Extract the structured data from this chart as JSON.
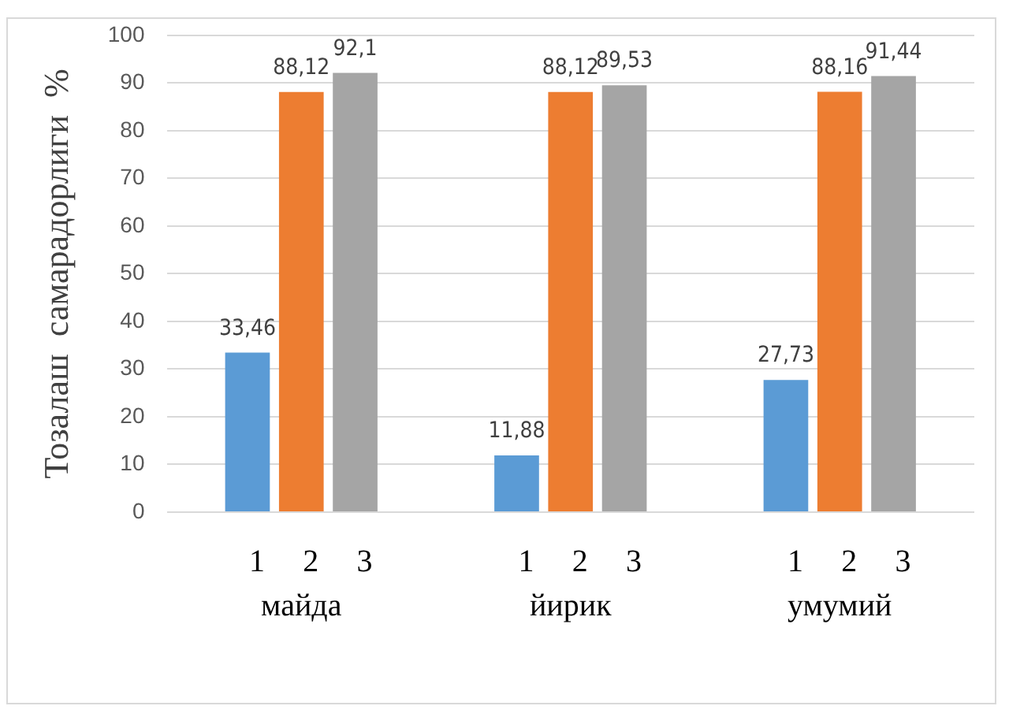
{
  "chart_data": {
    "type": "bar",
    "ylabel": "Тозалаш  самарадорлиги  %",
    "categories": [
      "майда",
      "йирик",
      "умумий"
    ],
    "series": [
      {
        "name": "1",
        "color": "#5b9bd5",
        "values": [
          33.46,
          11.88,
          27.73
        ],
        "value_labels": [
          "33,46",
          "11,88",
          "27,73"
        ]
      },
      {
        "name": "2",
        "color": "#ed7d31",
        "values": [
          88.12,
          88.12,
          88.16
        ],
        "value_labels": [
          "88,12",
          "88,12",
          "88,16"
        ]
      },
      {
        "name": "3",
        "color": "#a5a5a5",
        "values": [
          92.1,
          89.53,
          91.44
        ],
        "value_labels": [
          "92,1",
          "89,53",
          "91,44"
        ]
      }
    ],
    "ylim": [
      0,
      100
    ],
    "yticks": [
      0,
      10,
      20,
      30,
      40,
      50,
      60,
      70,
      80,
      90,
      100
    ],
    "grid": "y",
    "legend": false
  }
}
